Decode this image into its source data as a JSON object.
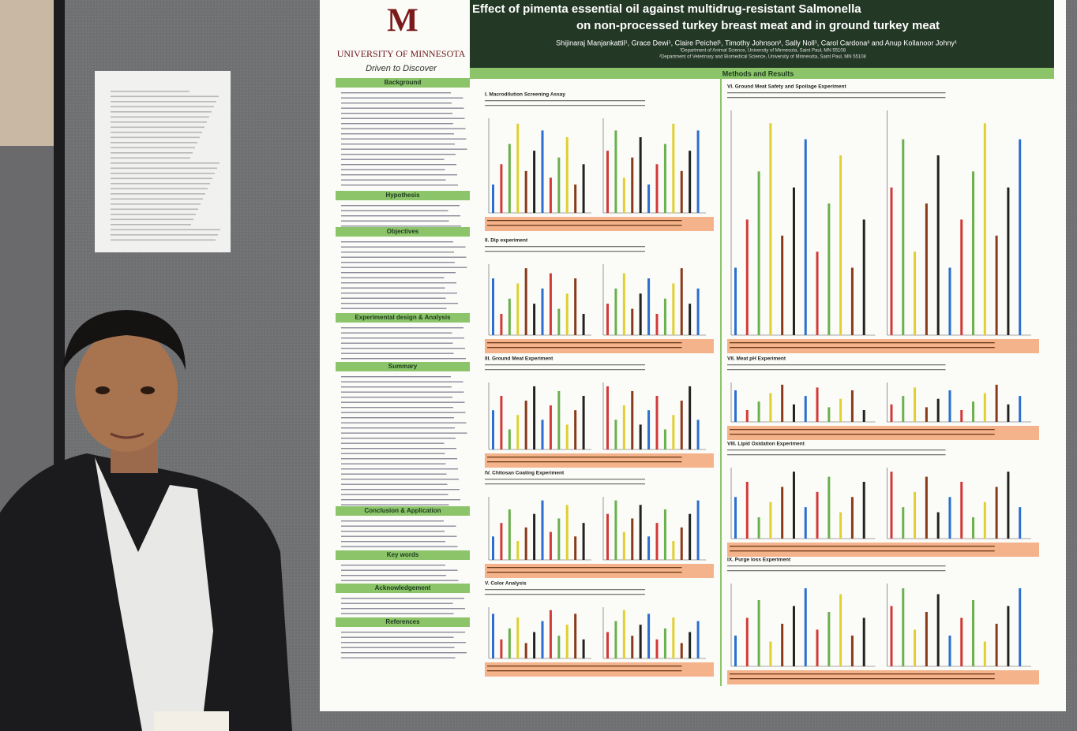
{
  "poster": {
    "university": "University of Minnesota",
    "tagline": "Driven to Discover",
    "title_lines": [
      "Effect of pimenta essential oil against multidrug-resistant Salmonella",
      "on non-processed turkey breast meat and in ground turkey meat"
    ],
    "authors": "Shijinaraj Manjankattil¹, Grace Dewi¹, Claire Peichel¹, Timothy Johnson², Sally Noll¹, Carol Cardona² and Anup Kollanoor Johny¹",
    "affiliations": [
      "¹Department of Animal Science, University of Minnesota, Saint Paul, MN 55108",
      "²Department of Veterinary and Biomedical Science, University of Minnesota, Saint Paul, MN 55108"
    ],
    "methods_heading": "Methods and Results",
    "left_sections": [
      "Background",
      "Hypothesis",
      "Objectives",
      "Experimental design & Analysis",
      "Summary",
      "Conclusion & Application",
      "Key words",
      "Acknowledgement",
      "References"
    ],
    "experiments_middle": [
      "I. Macrodilution Screening Assay",
      "II. Dip experiment",
      "III. Ground Meat Experiment",
      "IV. Chitosan Coating Experiment",
      "V. Color Analysis"
    ],
    "experiments_right": [
      "VI. Ground Meat Safety and Spoilage Experiment",
      "VII. Meat pH Experiment",
      "VIII. Lipid Oxidation Experiment",
      "IX. Purge loss Experiment"
    ]
  }
}
